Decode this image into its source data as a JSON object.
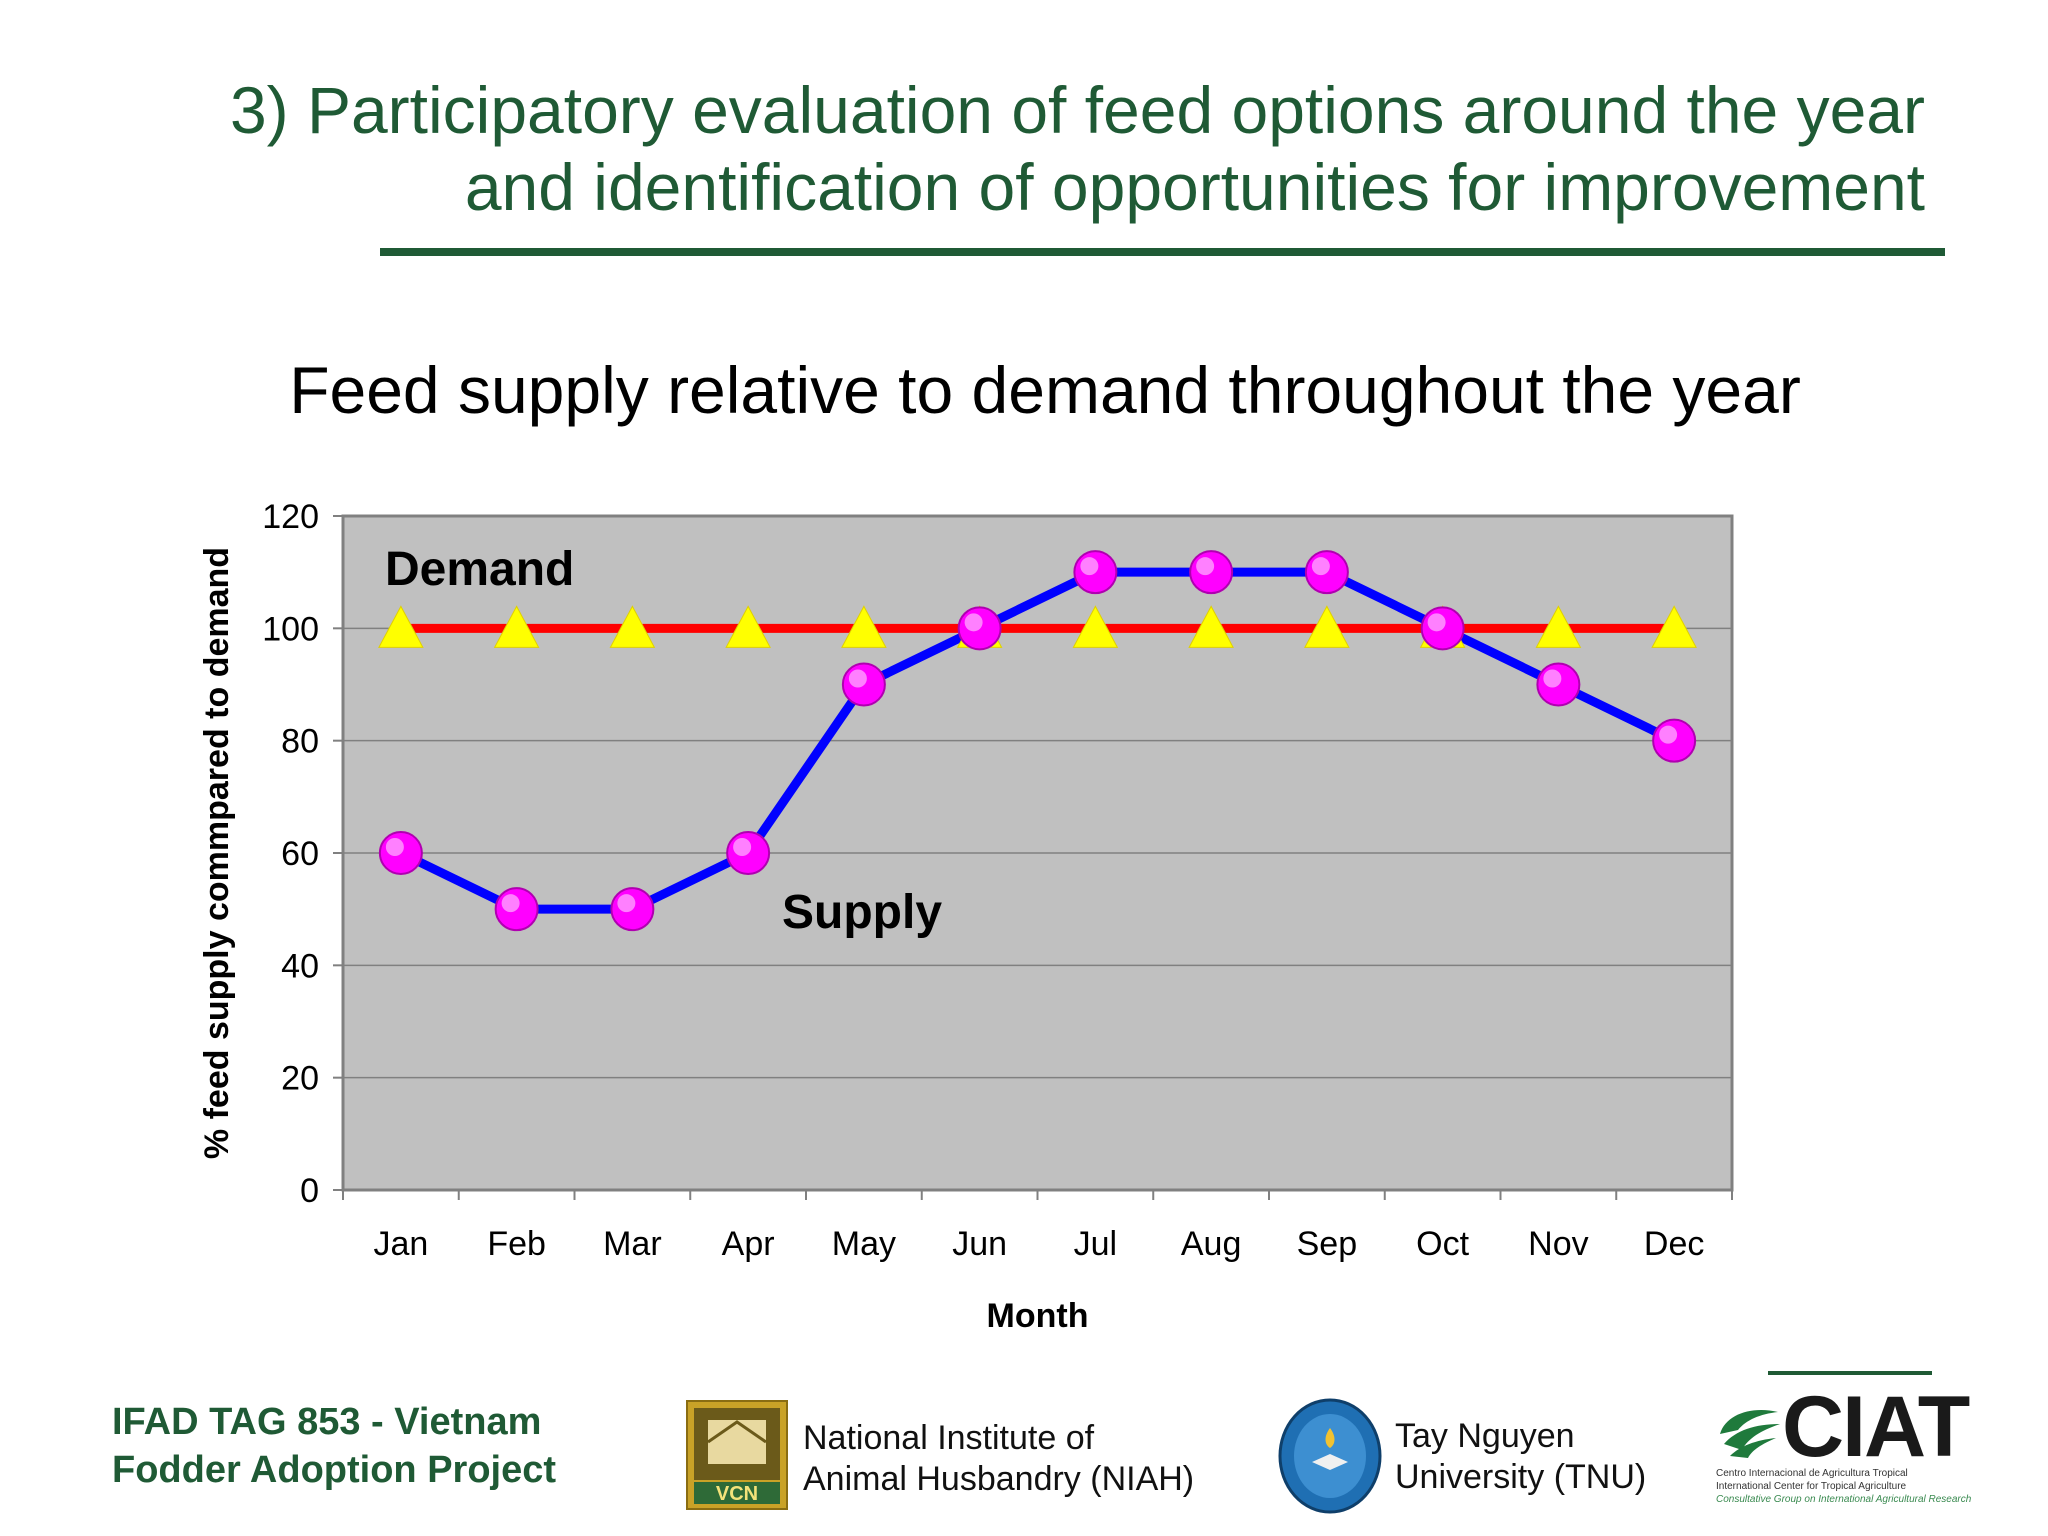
{
  "slide": {
    "title_line1": "3) Participatory evaluation of feed options around the year",
    "title_line2": "and identification of opportunities for improvement",
    "accent_color": "#1f5a35"
  },
  "chart_data": {
    "type": "line",
    "title": "Feed supply relative to demand throughout the year",
    "xlabel": "Month",
    "ylabel": "% feed supply commpared to demand",
    "categories": [
      "Jan",
      "Feb",
      "Mar",
      "Apr",
      "May",
      "Jun",
      "Jul",
      "Aug",
      "Sep",
      "Oct",
      "Nov",
      "Dec"
    ],
    "ylim": [
      0,
      120
    ],
    "yticks": [
      0,
      20,
      40,
      60,
      80,
      100,
      120
    ],
    "grid": true,
    "plot_background": "#c0c0c0",
    "series": [
      {
        "name": "Demand",
        "values": [
          100,
          100,
          100,
          100,
          100,
          100,
          100,
          100,
          100,
          100,
          100,
          100
        ],
        "line_color": "#ff0000",
        "marker": "triangle",
        "marker_color": "#ffff00"
      },
      {
        "name": "Supply",
        "values": [
          60,
          50,
          50,
          60,
          90,
          100,
          110,
          110,
          110,
          100,
          90,
          80
        ],
        "line_color": "#0000ff",
        "marker": "circle",
        "marker_color": "#ff00ff"
      }
    ]
  },
  "footer": {
    "project_line1": "IFAD TAG 853 - Vietnam",
    "project_line2": "Fodder Adoption Project",
    "niah_line1": "National Institute of",
    "niah_line2": "Animal Husbandry (NIAH)",
    "niah_logo_text": "VCN",
    "tnu_line1": "Tay Nguyen",
    "tnu_line2": "University (TNU)",
    "ciat_name": "CIAT",
    "ciat_line1": "Centro Internacional de Agricultura Tropical",
    "ciat_line2": "International Center for Tropical Agriculture",
    "ciat_line3": "Consultative Group on International Agricultural Research"
  }
}
